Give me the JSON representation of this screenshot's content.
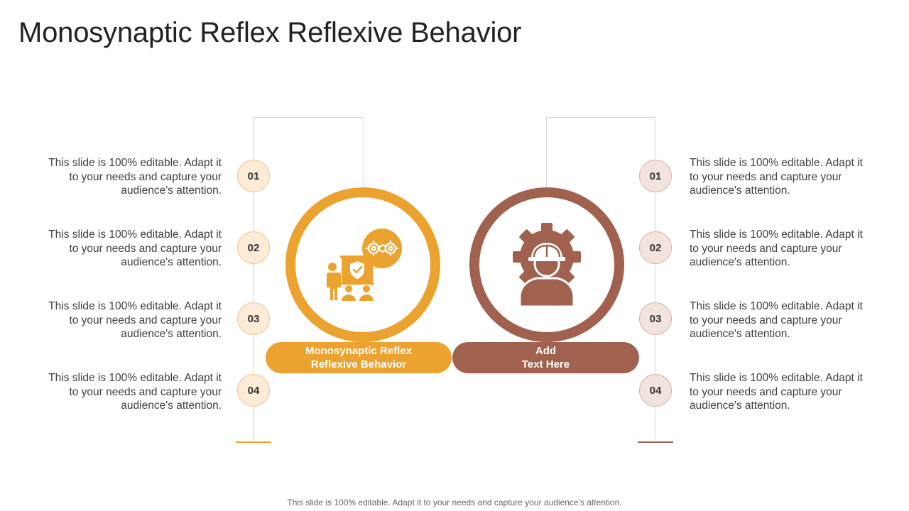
{
  "title": "Monosynaptic Reflex Reflexive Behavior",
  "colors": {
    "orange": "#eba22f",
    "brown": "#a0624f"
  },
  "left": {
    "items": [
      {
        "num": "01",
        "text": "This slide is 100% editable. Adapt it to your needs and capture your audience's attention."
      },
      {
        "num": "02",
        "text": "This slide is 100% editable. Adapt it to your needs and capture your audience's attention."
      },
      {
        "num": "03",
        "text": "This slide is 100% editable. Adapt it to your needs and capture your audience's attention."
      },
      {
        "num": "04",
        "text": "This slide is 100% editable. Adapt it to your needs and capture your audience's attention."
      }
    ],
    "icon": "presentation-teamwork-icon",
    "label_line1": "Monosynaptic Reflex",
    "label_line2": "Reflexive Behavior"
  },
  "right": {
    "items": [
      {
        "num": "01",
        "text": "This slide is 100% editable. Adapt it to your needs and capture your audience's attention."
      },
      {
        "num": "02",
        "text": "This slide is 100% editable. Adapt it to your needs and capture your audience's attention."
      },
      {
        "num": "03",
        "text": "This slide is 100% editable. Adapt it to your needs and capture your audience's attention."
      },
      {
        "num": "04",
        "text": "This slide is 100% editable. Adapt it to your needs and capture your audience's attention."
      }
    ],
    "icon": "engineer-gear-icon",
    "label_line1": "Add",
    "label_line2": "Text Here"
  },
  "footer": "This slide is 100% editable. Adapt it to your needs and capture your audience's attention."
}
